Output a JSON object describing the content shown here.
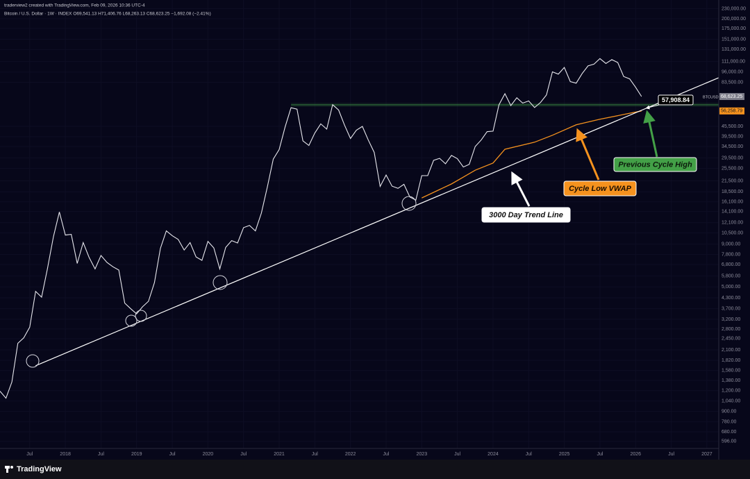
{
  "header": {
    "credit": "traderview2 created with TradingView.com, Feb 09, 2026 10:36 UTC-4",
    "symbol_line": "Bitcoin / U.S. Dollar · 1W · INDEX  O69,541.13  H71,406.76  L68,263.13  C68,623.25  −1,692.08 (−2.41%)"
  },
  "footer": {
    "logo": "TradingView"
  },
  "chart_data": {
    "type": "line",
    "yscale": "log",
    "grid": true,
    "xlim": [
      "2017-02",
      "2027-03"
    ],
    "ylim": [
      541,
      259000
    ],
    "xticks": [
      {
        "value": "2017-07",
        "label": "Jul"
      },
      {
        "value": "2018-01",
        "label": "2018"
      },
      {
        "value": "2018-07",
        "label": "Jul"
      },
      {
        "value": "2019-01",
        "label": "2019"
      },
      {
        "value": "2019-07",
        "label": "Jul"
      },
      {
        "value": "2020-01",
        "label": "2020"
      },
      {
        "value": "2020-07",
        "label": "Jul"
      },
      {
        "value": "2021-01",
        "label": "2021"
      },
      {
        "value": "2021-07",
        "label": "Jul"
      },
      {
        "value": "2022-01",
        "label": "2022"
      },
      {
        "value": "2022-07",
        "label": "Jul"
      },
      {
        "value": "2023-01",
        "label": "2023"
      },
      {
        "value": "2023-07",
        "label": "Jul"
      },
      {
        "value": "2024-01",
        "label": "2024"
      },
      {
        "value": "2024-07",
        "label": "Jul"
      },
      {
        "value": "2025-01",
        "label": "2025"
      },
      {
        "value": "2025-07",
        "label": "Jul"
      },
      {
        "value": "2026-01",
        "label": "2026"
      },
      {
        "value": "2026-07",
        "label": "Jul"
      },
      {
        "value": "2027-01",
        "label": "2027"
      }
    ],
    "yticks": [
      {
        "value": 230000,
        "label": "230,000.00"
      },
      {
        "value": 200000,
        "label": "200,000.00"
      },
      {
        "value": 175000,
        "label": "175,000.00"
      },
      {
        "value": 151000,
        "label": "151,000.00"
      },
      {
        "value": 131000,
        "label": "131,000.00"
      },
      {
        "value": 111000,
        "label": "111,000.00"
      },
      {
        "value": 96000,
        "label": "96,000.00"
      },
      {
        "value": 83500,
        "label": "83,500.00"
      },
      {
        "value": 45500,
        "label": "45,500.00"
      },
      {
        "value": 39500,
        "label": "39,500.00"
      },
      {
        "value": 34500,
        "label": "34,500.00"
      },
      {
        "value": 29500,
        "label": "29,500.00"
      },
      {
        "value": 25500,
        "label": "25,500.00"
      },
      {
        "value": 21500,
        "label": "21,500.00"
      },
      {
        "value": 18500,
        "label": "18,500.00"
      },
      {
        "value": 16100,
        "label": "16,100.00"
      },
      {
        "value": 14100,
        "label": "14,100.00"
      },
      {
        "value": 12100,
        "label": "12,100.00"
      },
      {
        "value": 10500,
        "label": "10,500.00"
      },
      {
        "value": 9000,
        "label": "9,000.00"
      },
      {
        "value": 7800,
        "label": "7,800.00"
      },
      {
        "value": 6800,
        "label": "6,800.00"
      },
      {
        "value": 5800,
        "label": "5,800.00"
      },
      {
        "value": 5000,
        "label": "5,000.00"
      },
      {
        "value": 4300,
        "label": "4,300.00"
      },
      {
        "value": 3700,
        "label": "3,700.00"
      },
      {
        "value": 3200,
        "label": "3,200.00"
      },
      {
        "value": 2800,
        "label": "2,800.00"
      },
      {
        "value": 2450,
        "label": "2,450.00"
      },
      {
        "value": 2100,
        "label": "2,100.00"
      },
      {
        "value": 1820,
        "label": "1,820.00"
      },
      {
        "value": 1580,
        "label": "1,580.00"
      },
      {
        "value": 1380,
        "label": "1,380.00"
      },
      {
        "value": 1200,
        "label": "1,200.00"
      },
      {
        "value": 1040,
        "label": "1,040.00"
      },
      {
        "value": 900,
        "label": "900.00"
      },
      {
        "value": 780,
        "label": "780.00"
      },
      {
        "value": 680,
        "label": "680.00"
      },
      {
        "value": 596,
        "label": "596.00"
      }
    ],
    "series": [
      {
        "name": "BTCUSD",
        "color": "#e8e8ee",
        "x": [
          "2017-02",
          "2017-03",
          "2017-04",
          "2017-05",
          "2017-06",
          "2017-07",
          "2017-08",
          "2017-09",
          "2017-10",
          "2017-11",
          "2017-12",
          "2018-01",
          "2018-02",
          "2018-03",
          "2018-04",
          "2018-05",
          "2018-06",
          "2018-07",
          "2018-08",
          "2018-09",
          "2018-10",
          "2018-11",
          "2018-12",
          "2019-01",
          "2019-02",
          "2019-03",
          "2019-04",
          "2019-05",
          "2019-06",
          "2019-07",
          "2019-08",
          "2019-09",
          "2019-10",
          "2019-11",
          "2019-12",
          "2020-01",
          "2020-02",
          "2020-03",
          "2020-04",
          "2020-05",
          "2020-06",
          "2020-07",
          "2020-08",
          "2020-09",
          "2020-10",
          "2020-11",
          "2020-12",
          "2021-01",
          "2021-02",
          "2021-03",
          "2021-04",
          "2021-05",
          "2021-06",
          "2021-07",
          "2021-08",
          "2021-09",
          "2021-10",
          "2021-11",
          "2021-12",
          "2022-01",
          "2022-02",
          "2022-03",
          "2022-04",
          "2022-05",
          "2022-06",
          "2022-07",
          "2022-08",
          "2022-09",
          "2022-10",
          "2022-11",
          "2022-12",
          "2023-01",
          "2023-02",
          "2023-03",
          "2023-04",
          "2023-05",
          "2023-06",
          "2023-07",
          "2023-08",
          "2023-09",
          "2023-10",
          "2023-11",
          "2023-12",
          "2024-01",
          "2024-02",
          "2024-03",
          "2024-04",
          "2024-05",
          "2024-06",
          "2024-07",
          "2024-08",
          "2024-09",
          "2024-10",
          "2024-11",
          "2024-12",
          "2025-01",
          "2025-02",
          "2025-03",
          "2025-04",
          "2025-05",
          "2025-06",
          "2025-07",
          "2025-08",
          "2025-09",
          "2025-10",
          "2025-11",
          "2025-12",
          "2026-01",
          "2026-02"
        ],
        "values": [
          1190,
          1080,
          1350,
          2300,
          2480,
          2870,
          4700,
          4340,
          6450,
          10000,
          14000,
          10200,
          10300,
          6900,
          9200,
          7500,
          6400,
          7700,
          7000,
          6600,
          6300,
          4000,
          3700,
          3450,
          3800,
          4100,
          5300,
          8500,
          10800,
          10100,
          9600,
          8300,
          9200,
          7550,
          7200,
          9350,
          8550,
          6400,
          8600,
          9450,
          9150,
          11300,
          11650,
          10800,
          13800,
          19700,
          29000,
          33100,
          45200,
          58800,
          57700,
          37300,
          35000,
          41500,
          47100,
          43800,
          61300,
          57000,
          46300,
          38500,
          43200,
          45500,
          37700,
          31800,
          19900,
          23300,
          20000,
          19400,
          20500,
          17200,
          16500,
          23100,
          23100,
          28500,
          29300,
          27200,
          30500,
          29200,
          26000,
          27000,
          34500,
          37700,
          42300,
          42600,
          61200,
          71300,
          60600,
          67500,
          62700,
          64600,
          59000,
          63300,
          70200,
          96400,
          93400,
          102400,
          84300,
          82500,
          94200,
          104600,
          107100,
          115700,
          108200,
          114000,
          109500,
          90400,
          87500,
          78000,
          68623.25
        ],
        "last_label": "68,623.25"
      }
    ],
    "vwap": {
      "name": "Cycle Low VWAP",
      "color": "#f5921e",
      "x": [
        "2023-01",
        "2023-06",
        "2023-10",
        "2024-01",
        "2024-03",
        "2024-08",
        "2024-11",
        "2025-03",
        "2025-07",
        "2025-11",
        "2026-02"
      ],
      "values": [
        17000,
        20600,
        24900,
        27500,
        33200,
        36600,
        40300,
        46500,
        50200,
        53600,
        56258.79
      ],
      "last_label": "56,258.79"
    },
    "trend_line": {
      "name": "3000 Day Trend Line",
      "color": "#ffffff",
      "x": [
        "2017-08",
        "2027-03"
      ],
      "values": [
        1690,
        88900
      ]
    },
    "prev_high": {
      "name": "Previous Cycle High",
      "color": "#43a047",
      "start": "2021-03",
      "level": 61200
    },
    "trend_callout": {
      "text": "57,908.84",
      "value": 57908.84
    }
  }
}
